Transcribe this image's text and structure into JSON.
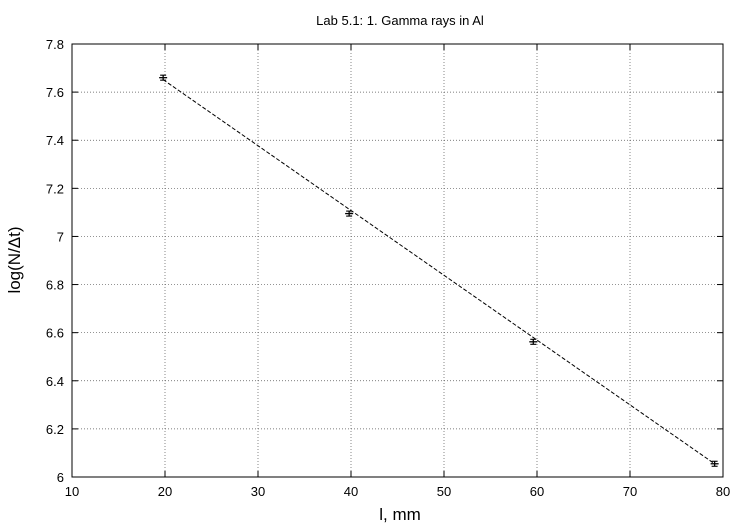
{
  "chart_data": {
    "type": "scatter",
    "title": "Lab 5.1: 1. Gamma rays in Al",
    "xlabel": "l, mm",
    "ylabel": "log(N/Δt)",
    "xlim": [
      10,
      80
    ],
    "ylim": [
      6,
      7.8
    ],
    "xticks": [
      10,
      20,
      30,
      40,
      50,
      60,
      70,
      80
    ],
    "xtick_labels": [
      "10",
      "20",
      "30",
      "40",
      "50",
      "60",
      "70",
      "80"
    ],
    "yticks": [
      6,
      6.2,
      6.4,
      6.6,
      6.8,
      7,
      7.2,
      7.4,
      7.6,
      7.8
    ],
    "ytick_labels": [
      "6",
      "6.2",
      "6.4",
      "6.6",
      "6.8",
      "7",
      "7.2",
      "7.4",
      "7.6",
      "7.8"
    ],
    "grid": true,
    "series": [
      {
        "kind": "points-with-errorbars",
        "marker": "plus",
        "x": [
          19.8,
          39.8,
          59.6,
          79.1
        ],
        "y": [
          7.66,
          7.095,
          6.562,
          6.055
        ],
        "yerr": [
          0.006,
          0.01,
          0.008,
          0.008
        ]
      },
      {
        "kind": "fit-line",
        "style": "dashed",
        "x": [
          19.8,
          79.1
        ],
        "y": [
          7.652,
          6.055
        ]
      }
    ],
    "colors": {
      "axes": "#000000",
      "grid": "#555555",
      "data": "#000000"
    }
  }
}
